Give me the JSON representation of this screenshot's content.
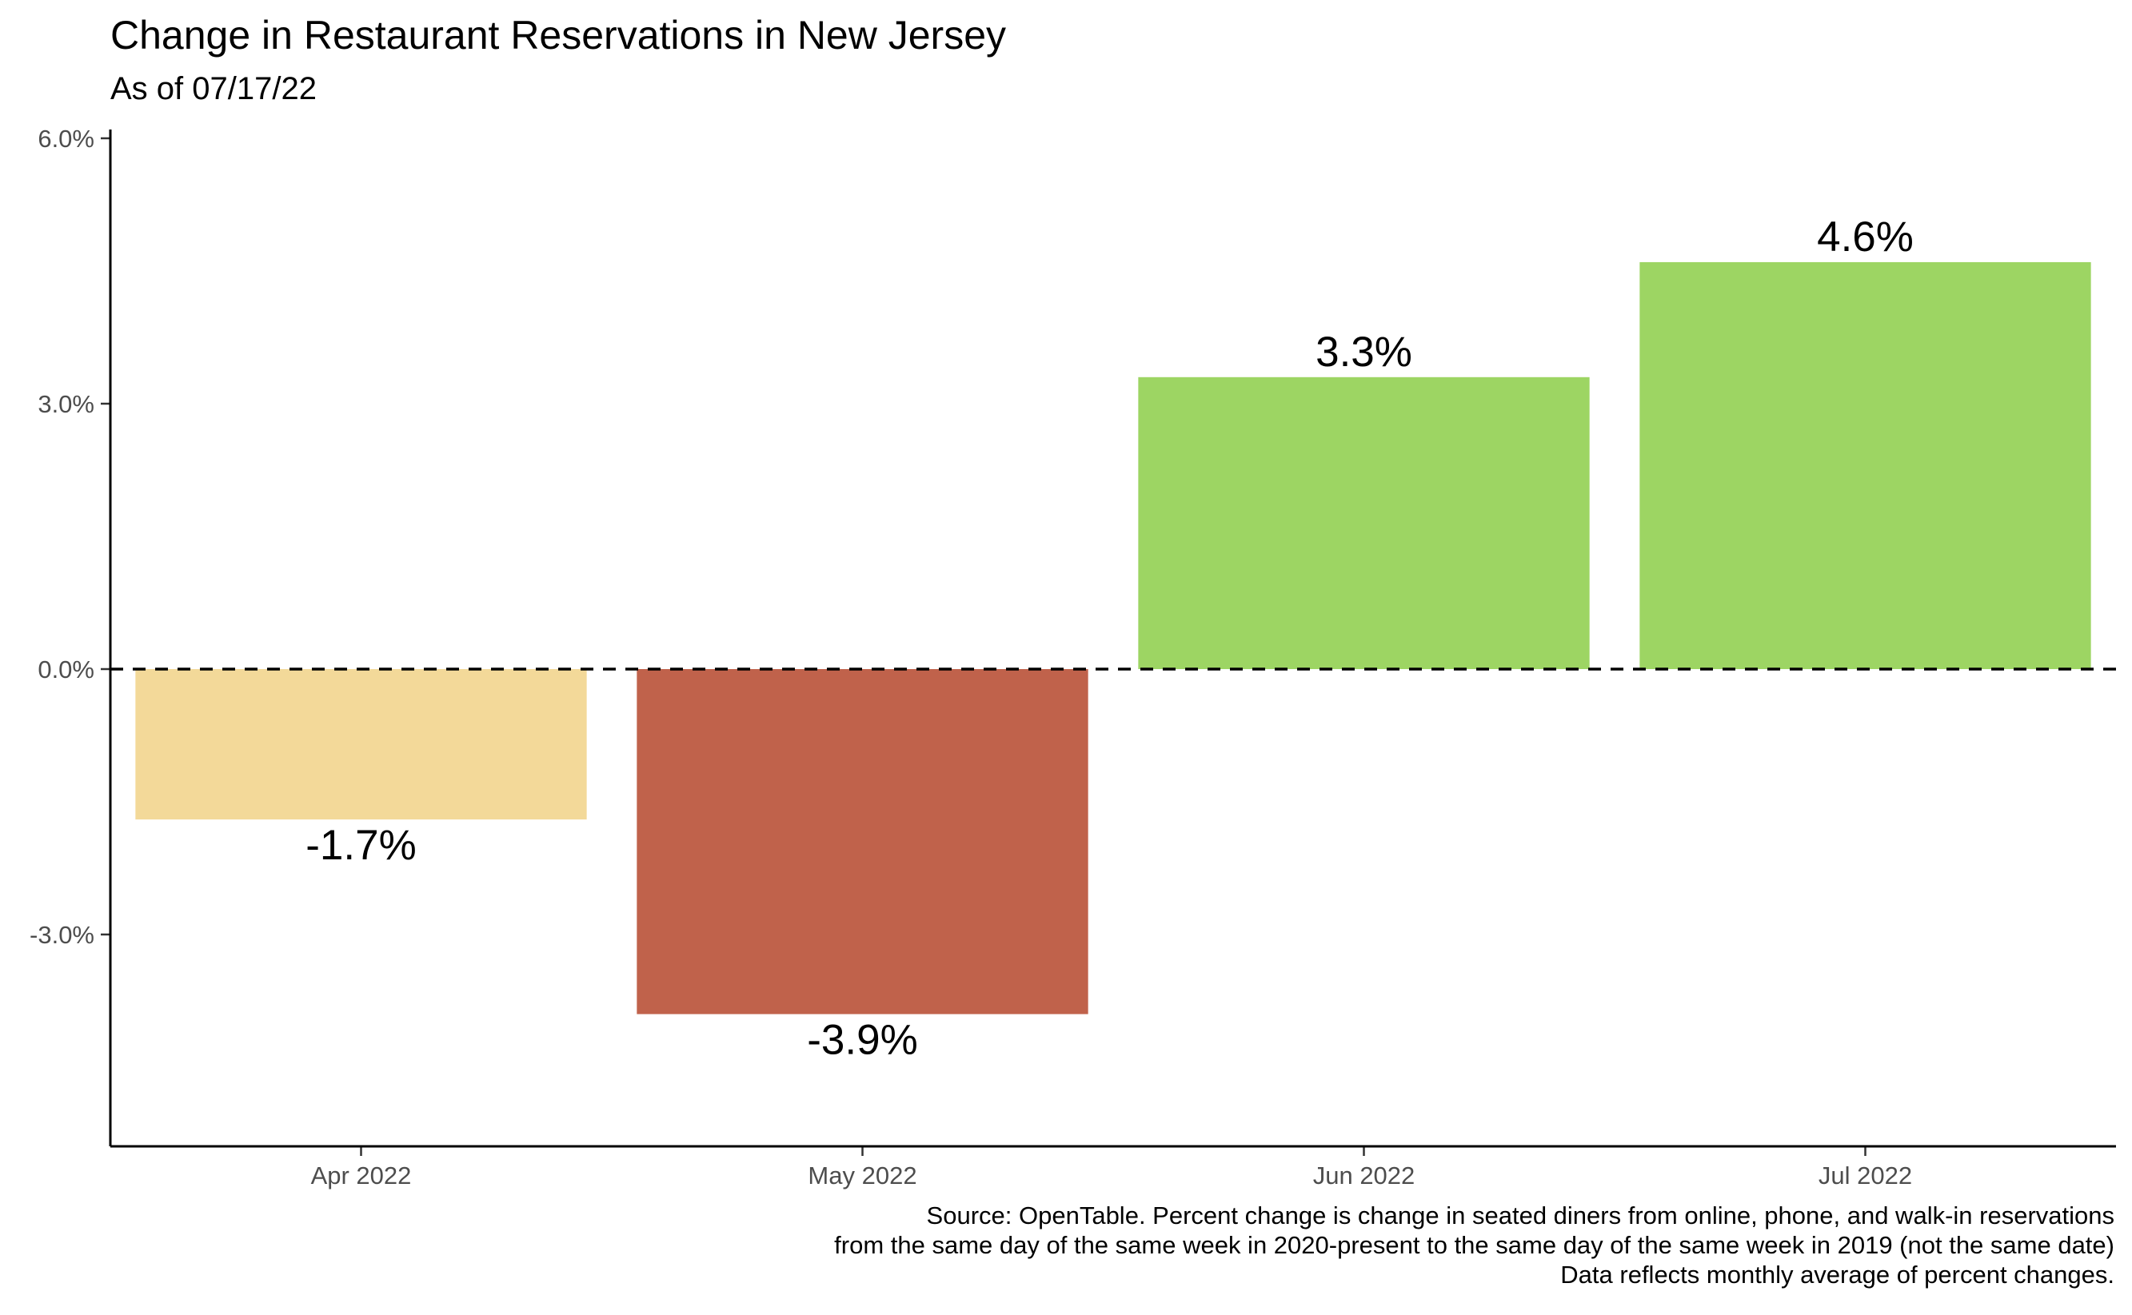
{
  "chart_data": {
    "type": "bar",
    "title": "Change in Restaurant Reservations in New Jersey",
    "subtitle": "As of 07/17/22",
    "xlabel": "",
    "ylabel": "",
    "categories": [
      "Apr 2022",
      "May 2022",
      "Jun 2022",
      "Jul 2022"
    ],
    "values": [
      -1.7,
      -3.9,
      3.3,
      4.6
    ],
    "data_labels": [
      "-1.7%",
      "-3.9%",
      "3.3%",
      "4.6%"
    ],
    "bar_colors": [
      "#F3D999",
      "#C0624B",
      "#9DD563",
      "#9DD563"
    ],
    "ylim": [
      -5.4,
      6.0
    ],
    "yticks": [
      -3.0,
      0.0,
      3.0,
      6.0
    ],
    "ytick_labels": [
      "-3.0%",
      "0.0%",
      "3.0%",
      "6.0%"
    ],
    "reference_line": {
      "y": 0,
      "style": "dashed",
      "color": "#000000"
    },
    "grid": false,
    "legend": "none",
    "caption": [
      "Source: OpenTable. Percent change is change in seated diners from online, phone, and walk-in reservations",
      "from the same day of the same week in 2020-present to the same day of the same week in 2019 (not the same date)",
      "Data reflects monthly average of percent changes."
    ]
  }
}
